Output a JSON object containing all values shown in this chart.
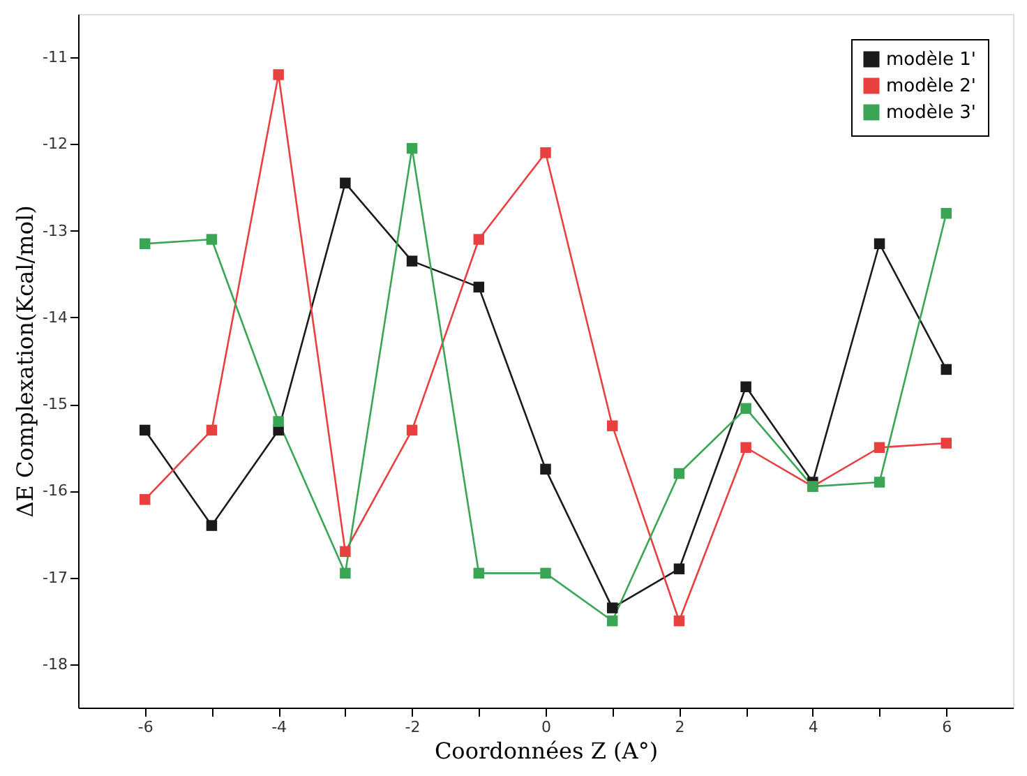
{
  "chart_data": {
    "type": "line",
    "xlabel": "Coordonnées Z (A°)",
    "ylabel": "ΔE Complexation(Kcal/mol)",
    "x": [
      -6,
      -5,
      -4,
      -3,
      -2,
      -1,
      0,
      1,
      2,
      3,
      4,
      5,
      6
    ],
    "series": [
      {
        "name": "modèle 1'",
        "color": "#1a1a1a",
        "values": [
          -15.3,
          -16.4,
          -15.3,
          -12.45,
          -13.35,
          -13.65,
          -15.75,
          -17.35,
          -16.9,
          -14.8,
          -15.9,
          -13.15,
          -14.6
        ]
      },
      {
        "name": "modèle 2'",
        "color": "#e8403f",
        "values": [
          -16.1,
          -15.3,
          -11.2,
          -16.7,
          -15.3,
          -13.1,
          -12.1,
          -15.25,
          -17.5,
          -15.5,
          -15.95,
          -15.5,
          -15.45
        ]
      },
      {
        "name": "modèle 3'",
        "color": "#3aa655",
        "values": [
          -13.15,
          -13.1,
          -15.2,
          -16.95,
          -12.05,
          -16.95,
          -16.95,
          -17.5,
          -15.8,
          -15.05,
          -15.95,
          -15.9,
          -12.8
        ]
      }
    ],
    "xlim": [
      -7,
      7
    ],
    "xticks": [
      -6,
      {
        "value": -5,
        "label": null
      },
      -4,
      {
        "value": -3,
        "label": null
      },
      -2,
      {
        "value": -1,
        "label": null
      },
      0,
      {
        "value": 1,
        "label": null
      },
      2,
      {
        "value": 3,
        "label": null
      },
      4,
      {
        "value": 5,
        "label": null
      },
      6
    ],
    "ylim": [
      -18.5,
      -10.5
    ],
    "yticks": [
      -18,
      -17,
      -16,
      -15,
      -14,
      -13,
      -12,
      -11
    ],
    "grid": false,
    "legend": "top right",
    "marker": "square",
    "line_style": "solid"
  }
}
